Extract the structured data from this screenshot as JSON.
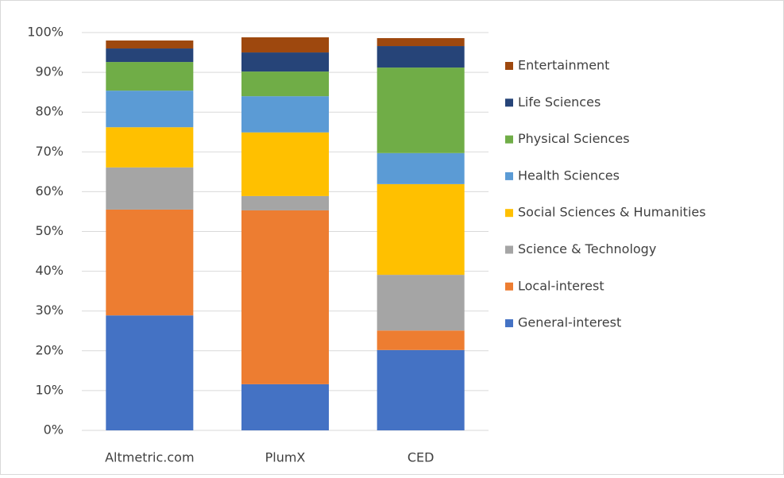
{
  "chart_data": {
    "type": "stacked_bar",
    "categories": [
      "Altmetric.com",
      "PlumX",
      "CED"
    ],
    "series": [
      {
        "name": "General-interest",
        "color": "#4472c4",
        "values": [
          28.9,
          11.6,
          20.2
        ]
      },
      {
        "name": "Local-interest",
        "color": "#ed7d31",
        "values": [
          26.6,
          43.7,
          4.9
        ]
      },
      {
        "name": "Science & Technology",
        "color": "#a5a5a5",
        "values": [
          10.6,
          3.6,
          14.0
        ]
      },
      {
        "name": "Social Sciences & Humanities",
        "color": "#ffc000",
        "values": [
          10.1,
          16.0,
          22.8
        ]
      },
      {
        "name": "Health Sciences",
        "color": "#5b9bd5",
        "values": [
          9.2,
          9.1,
          7.8
        ]
      },
      {
        "name": "Physical Sciences",
        "color": "#70ad47",
        "values": [
          7.2,
          6.2,
          21.5
        ]
      },
      {
        "name": "Life Sciences",
        "color": "#264478",
        "values": [
          3.4,
          4.8,
          5.4
        ]
      },
      {
        "name": "Entertainment",
        "color": "#9e480e",
        "values": [
          2.0,
          3.8,
          2.0
        ]
      }
    ],
    "ylim": [
      0,
      100
    ],
    "yticks": [
      {
        "value": 0,
        "label": "0%"
      },
      {
        "value": 10,
        "label": "10%"
      },
      {
        "value": 20,
        "label": "20%"
      },
      {
        "value": 30,
        "label": "30%"
      },
      {
        "value": 40,
        "label": "40%"
      },
      {
        "value": 50,
        "label": "50%"
      },
      {
        "value": 60,
        "label": "60%"
      },
      {
        "value": 70,
        "label": "70%"
      },
      {
        "value": 80,
        "label": "80%"
      },
      {
        "value": 90,
        "label": "90%"
      },
      {
        "value": 100,
        "label": "100%"
      }
    ],
    "grid": true,
    "legend": "right"
  }
}
